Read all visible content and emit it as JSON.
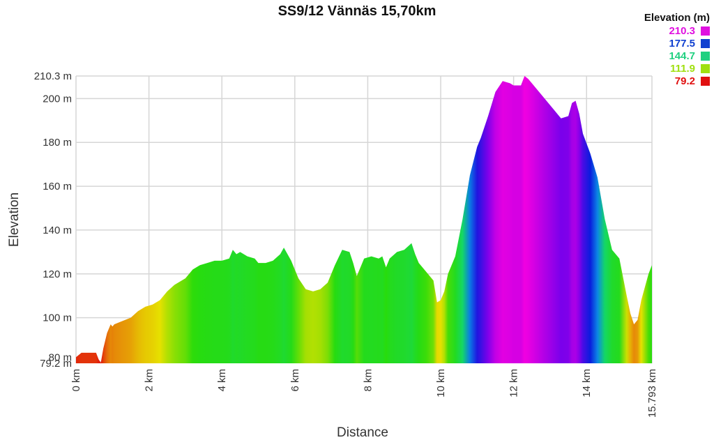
{
  "chart": {
    "title": "SS9/12 Vännäs 15,70km",
    "xlabel": "Distance",
    "ylabel": "Elevation",
    "legend_title": "Elevation (m)"
  },
  "legend": [
    {
      "label": "210.3",
      "color": "#e010e0"
    },
    {
      "label": "177.5",
      "color": "#1040d0"
    },
    {
      "label": "144.7",
      "color": "#20d080"
    },
    {
      "label": "111.9",
      "color": "#a0e010"
    },
    {
      "label": "79.2",
      "color": "#e01010"
    }
  ],
  "chart_data": {
    "type": "area",
    "title": "SS9/12 Vännäs 15,70km",
    "xlabel": "Distance",
    "ylabel": "Elevation",
    "x_unit": "km",
    "y_unit": "m",
    "xlim": [
      0,
      15.793
    ],
    "ylim": [
      79.2,
      210.3
    ],
    "grid": true,
    "legend_position": "top-right",
    "color_scale": {
      "min": 79.2,
      "max": 210.3,
      "stops": [
        79.2,
        111.9,
        144.7,
        177.5,
        210.3
      ]
    },
    "x_ticks": [
      "0 km",
      "2 km",
      "4 km",
      "6 km",
      "8 km",
      "10 km",
      "12 km",
      "14 km",
      "15.793 km"
    ],
    "y_ticks": [
      "79.2 m",
      "80 m",
      "100 m",
      "120 m",
      "140 m",
      "160 m",
      "180 m",
      "200 m",
      "210.3 m"
    ],
    "x": [
      0,
      0.15,
      0.3,
      0.45,
      0.55,
      0.62,
      0.68,
      0.75,
      0.85,
      0.95,
      1.0,
      1.05,
      1.2,
      1.35,
      1.5,
      1.7,
      1.9,
      2.1,
      2.3,
      2.5,
      2.7,
      3.0,
      3.2,
      3.4,
      3.6,
      3.8,
      4.0,
      4.2,
      4.3,
      4.4,
      4.5,
      4.7,
      4.9,
      5.0,
      5.2,
      5.4,
      5.6,
      5.7,
      5.9,
      6.1,
      6.3,
      6.5,
      6.7,
      6.9,
      7.1,
      7.3,
      7.5,
      7.6,
      7.7,
      7.9,
      8.1,
      8.3,
      8.4,
      8.5,
      8.6,
      8.8,
      9.0,
      9.2,
      9.3,
      9.4,
      9.6,
      9.8,
      9.9,
      10.0,
      10.1,
      10.2,
      10.4,
      10.6,
      10.8,
      11.0,
      11.1,
      11.3,
      11.5,
      11.7,
      11.9,
      12.0,
      12.2,
      12.3,
      12.4,
      12.5,
      12.7,
      12.9,
      13.1,
      13.3,
      13.5,
      13.6,
      13.7,
      13.8,
      13.9,
      14.1,
      14.3,
      14.5,
      14.7,
      14.9,
      15.1,
      15.2,
      15.3,
      15.4,
      15.5,
      15.7,
      15.793
    ],
    "values": [
      82,
      84,
      84,
      84,
      84,
      81,
      79.5,
      86,
      93,
      97,
      96,
      97,
      98,
      99,
      100,
      103,
      105,
      106,
      108,
      112,
      115,
      118,
      122,
      124,
      125,
      126,
      126,
      127,
      131,
      129,
      130,
      128,
      127,
      125,
      125,
      126,
      129,
      132,
      126,
      118,
      113,
      112,
      113,
      116,
      124,
      131,
      130,
      125,
      119,
      127,
      128,
      127,
      128,
      123,
      127,
      130,
      131,
      134,
      129,
      125,
      121,
      117,
      107,
      108,
      112,
      120,
      128,
      145,
      165,
      178,
      182,
      192,
      203,
      208,
      207,
      206,
      206,
      210.3,
      209,
      207,
      203,
      199,
      195,
      191,
      192,
      198,
      199,
      193,
      184,
      175,
      164,
      145,
      131,
      127,
      110,
      102,
      97,
      99,
      108,
      120,
      124
    ]
  }
}
